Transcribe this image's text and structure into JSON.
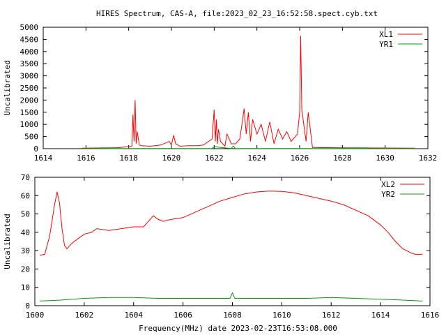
{
  "title": "HIRES Spectrum, CAS-A, file:2023_02_23_16:52:58.spect.cyb.txt",
  "chart_data": [
    {
      "type": "line",
      "title": "HIRES Spectrum, CAS-A, file:2023_02_23_16:52:58.spect.cyb.txt",
      "xlabel": "",
      "ylabel": "Uncalibrated",
      "xlim": [
        1614,
        1632
      ],
      "ylim": [
        0,
        5000
      ],
      "xticks": [
        "1614",
        "1616",
        "1618",
        "1620",
        "1622",
        "1624",
        "1626",
        "1628",
        "1630",
        "1632"
      ],
      "yticks": [
        "0",
        "500",
        "1000",
        "1500",
        "2000",
        "2500",
        "3000",
        "3500",
        "4000",
        "4500",
        "5000"
      ],
      "grid": false,
      "legend_position": "top-right",
      "series": [
        {
          "name": "XL1",
          "color": "#ff0000",
          "x": [
            1615.8,
            1616.5,
            1617.5,
            1618.15,
            1618.2,
            1618.25,
            1618.3,
            1618.35,
            1618.4,
            1618.5,
            1618.6,
            1619.0,
            1619.5,
            1619.9,
            1620.0,
            1620.1,
            1620.2,
            1620.4,
            1620.8,
            1621.2,
            1621.5,
            1621.9,
            1622.0,
            1622.05,
            1622.1,
            1622.15,
            1622.2,
            1622.3,
            1622.5,
            1622.6,
            1622.8,
            1623.0,
            1623.2,
            1623.3,
            1623.4,
            1623.5,
            1623.6,
            1623.7,
            1623.8,
            1624.0,
            1624.2,
            1624.4,
            1624.6,
            1624.8,
            1625.0,
            1625.2,
            1625.4,
            1625.6,
            1625.9,
            1626.0,
            1626.05,
            1626.1,
            1626.3,
            1626.4,
            1626.6,
            1627.5,
            1629.5,
            1631.4
          ],
          "values": [
            20,
            30,
            40,
            100,
            1400,
            300,
            2000,
            200,
            700,
            150,
            120,
            100,
            150,
            300,
            150,
            550,
            200,
            100,
            120,
            120,
            150,
            400,
            1600,
            300,
            1200,
            200,
            800,
            300,
            100,
            600,
            200,
            200,
            400,
            1000,
            1650,
            600,
            1500,
            300,
            1200,
            600,
            1000,
            300,
            1100,
            200,
            800,
            400,
            700,
            300,
            600,
            1500,
            4650,
            1600,
            300,
            1500,
            50,
            40,
            30,
            20
          ]
        },
        {
          "name": "YR1",
          "color": "#00a000",
          "x": [
            1615.8,
            1621.9,
            1622.0,
            1622.2,
            1622.8,
            1622.9,
            1623.0,
            1631.4
          ],
          "values": [
            5,
            5,
            90,
            60,
            5,
            110,
            5,
            5
          ]
        }
      ]
    },
    {
      "type": "line",
      "title": "",
      "xlabel": "Frequency(MHz) date 2023-02-23T16:53:08.000",
      "ylabel": "Uncalibrated",
      "xlim": [
        1600,
        1616
      ],
      "ylim": [
        0,
        70
      ],
      "xticks": [
        "1600",
        "1602",
        "1604",
        "1606",
        "1608",
        "1610",
        "1612",
        "1614",
        "1616"
      ],
      "yticks": [
        "0",
        "10",
        "20",
        "30",
        "40",
        "50",
        "60",
        "70"
      ],
      "grid": false,
      "legend_position": "top-right",
      "series": [
        {
          "name": "XL2",
          "color": "#ff0000",
          "x": [
            1600.2,
            1600.4,
            1600.6,
            1600.8,
            1600.9,
            1601.0,
            1601.1,
            1601.2,
            1601.3,
            1601.5,
            1601.8,
            1602.0,
            1602.3,
            1602.5,
            1603.0,
            1603.5,
            1604.0,
            1604.4,
            1604.6,
            1604.8,
            1605.0,
            1605.2,
            1605.5,
            1606.0,
            1606.5,
            1607.0,
            1607.5,
            1608.0,
            1608.5,
            1609.0,
            1609.5,
            1610.0,
            1610.5,
            1611.0,
            1611.5,
            1612.0,
            1612.5,
            1613.0,
            1613.5,
            1614.0,
            1614.3,
            1614.6,
            1614.9,
            1615.2,
            1615.4,
            1615.7
          ],
          "values": [
            27.5,
            28,
            38,
            55,
            62,
            56,
            42,
            33,
            31,
            34,
            37,
            39,
            40,
            42,
            41,
            42,
            43,
            43,
            46,
            49,
            47,
            46,
            47,
            48,
            51,
            54,
            57,
            59,
            61,
            62,
            62.5,
            62.3,
            61.5,
            60,
            58.5,
            57,
            55,
            52,
            49,
            44,
            40,
            35,
            31,
            29,
            28,
            28
          ]
        },
        {
          "name": "YR2",
          "color": "#00a000",
          "x": [
            1600.2,
            1601.0,
            1602.0,
            1603.0,
            1604.0,
            1605.0,
            1606.0,
            1607.0,
            1607.9,
            1608.0,
            1608.1,
            1609.0,
            1610.0,
            1611.0,
            1612.0,
            1613.0,
            1614.0,
            1615.0,
            1615.7
          ],
          "values": [
            2.5,
            3,
            4,
            4.5,
            4.5,
            4,
            4,
            4,
            4,
            7,
            4,
            4,
            4,
            4,
            4.5,
            4,
            3.5,
            3,
            2.5
          ]
        }
      ]
    }
  ]
}
